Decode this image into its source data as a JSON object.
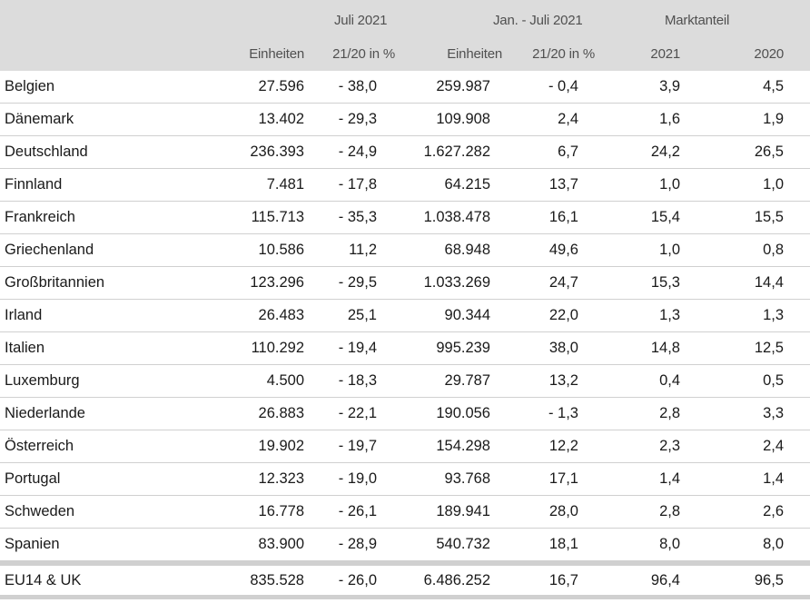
{
  "header": {
    "group1": "Juli 2021",
    "group2": "Jan. - Juli 2021",
    "group3": "Marktanteil",
    "sub_units_1": "Einheiten",
    "sub_change_1": "21/20 in %",
    "sub_units_2": "Einheiten",
    "sub_change_2": "21/20 in %",
    "sub_year_2021": "2021",
    "sub_year_2020": "2020"
  },
  "rows": [
    {
      "country": "Belgien",
      "units_jul": "27.596",
      "chg_jul": "- 38,0",
      "units_ytd": "259.987",
      "chg_ytd": "- 0,4",
      "share_2021": "3,9",
      "share_2020": "4,5"
    },
    {
      "country": "Dänemark",
      "units_jul": "13.402",
      "chg_jul": "- 29,3",
      "units_ytd": "109.908",
      "chg_ytd": "2,4",
      "share_2021": "1,6",
      "share_2020": "1,9"
    },
    {
      "country": "Deutschland",
      "units_jul": "236.393",
      "chg_jul": "- 24,9",
      "units_ytd": "1.627.282",
      "chg_ytd": "6,7",
      "share_2021": "24,2",
      "share_2020": "26,5"
    },
    {
      "country": "Finnland",
      "units_jul": "7.481",
      "chg_jul": "- 17,8",
      "units_ytd": "64.215",
      "chg_ytd": "13,7",
      "share_2021": "1,0",
      "share_2020": "1,0"
    },
    {
      "country": "Frankreich",
      "units_jul": "115.713",
      "chg_jul": "- 35,3",
      "units_ytd": "1.038.478",
      "chg_ytd": "16,1",
      "share_2021": "15,4",
      "share_2020": "15,5"
    },
    {
      "country": "Griechenland",
      "units_jul": "10.586",
      "chg_jul": "11,2",
      "units_ytd": "68.948",
      "chg_ytd": "49,6",
      "share_2021": "1,0",
      "share_2020": "0,8"
    },
    {
      "country": "Großbritannien",
      "units_jul": "123.296",
      "chg_jul": "- 29,5",
      "units_ytd": "1.033.269",
      "chg_ytd": "24,7",
      "share_2021": "15,3",
      "share_2020": "14,4"
    },
    {
      "country": "Irland",
      "units_jul": "26.483",
      "chg_jul": "25,1",
      "units_ytd": "90.344",
      "chg_ytd": "22,0",
      "share_2021": "1,3",
      "share_2020": "1,3"
    },
    {
      "country": "Italien",
      "units_jul": "110.292",
      "chg_jul": "- 19,4",
      "units_ytd": "995.239",
      "chg_ytd": "38,0",
      "share_2021": "14,8",
      "share_2020": "12,5"
    },
    {
      "country": "Luxemburg",
      "units_jul": "4.500",
      "chg_jul": "- 18,3",
      "units_ytd": "29.787",
      "chg_ytd": "13,2",
      "share_2021": "0,4",
      "share_2020": "0,5"
    },
    {
      "country": "Niederlande",
      "units_jul": "26.883",
      "chg_jul": "- 22,1",
      "units_ytd": "190.056",
      "chg_ytd": "- 1,3",
      "share_2021": "2,8",
      "share_2020": "3,3"
    },
    {
      "country": "Österreich",
      "units_jul": "19.902",
      "chg_jul": "- 19,7",
      "units_ytd": "154.298",
      "chg_ytd": "12,2",
      "share_2021": "2,3",
      "share_2020": "2,4"
    },
    {
      "country": "Portugal",
      "units_jul": "12.323",
      "chg_jul": "- 19,0",
      "units_ytd": "93.768",
      "chg_ytd": "17,1",
      "share_2021": "1,4",
      "share_2020": "1,4"
    },
    {
      "country": "Schweden",
      "units_jul": "16.778",
      "chg_jul": "- 26,1",
      "units_ytd": "189.941",
      "chg_ytd": "28,0",
      "share_2021": "2,8",
      "share_2020": "2,6"
    },
    {
      "country": "Spanien",
      "units_jul": "83.900",
      "chg_jul": "- 28,9",
      "units_ytd": "540.732",
      "chg_ytd": "18,1",
      "share_2021": "8,0",
      "share_2020": "8,0"
    }
  ],
  "total": {
    "country": "EU14 & UK",
    "units_jul": "835.528",
    "chg_jul": "- 26,0",
    "units_ytd": "6.486.252",
    "chg_ytd": "16,7",
    "share_2021": "96,4",
    "share_2020": "96,5"
  },
  "colors": {
    "header_bg": "#dcdcdc",
    "header_text": "#505050",
    "row_rule": "#d0d0d0",
    "body_text": "#1a1a1a"
  }
}
